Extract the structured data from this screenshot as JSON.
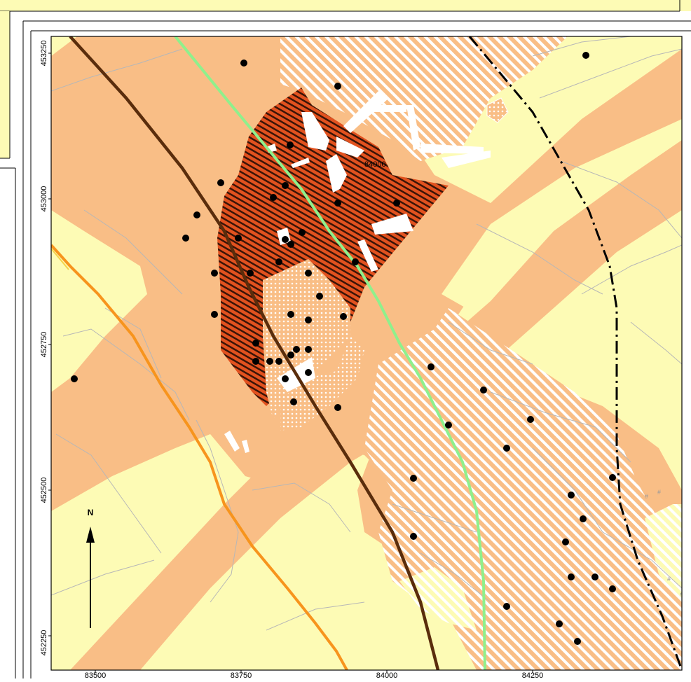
{
  "map": {
    "x_ticks": [
      "83500",
      "83750",
      "84000",
      "84250"
    ],
    "y_ticks": [
      "453250",
      "453000",
      "452750",
      "452500",
      "452250"
    ],
    "north_label": "N",
    "grid_label": "84000"
  },
  "colors": {
    "background": "#fdfbb5",
    "zone_orange": "#f9be86",
    "zone_red": "#e2521f",
    "hatch_white": "#ffffff",
    "road_brown": "#5a2d0c",
    "road_green": "#8ff08c",
    "road_orange": "#f7941d",
    "parcel_lines": "#b7b7b7",
    "points": "#000000"
  }
}
